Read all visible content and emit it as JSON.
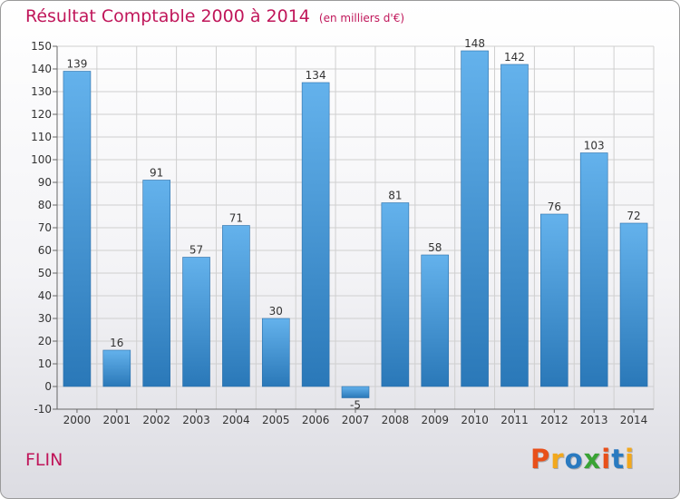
{
  "header": {
    "title": "Résultat Comptable 2000 à 2014",
    "unit": "(en milliers d'€)"
  },
  "footer": {
    "commune": "FLIN",
    "logo_text": "Proxiti",
    "logo_colors": [
      "#e8501a",
      "#f2a81d",
      "#2a7ac0",
      "#3aa335",
      "#e8501a",
      "#2a7ac0",
      "#f2a81d"
    ]
  },
  "colors": {
    "accent": "#c0165a",
    "bar_top": "#64b2ec",
    "bar_bottom": "#2a78b8"
  },
  "chart_data": {
    "type": "bar",
    "categories": [
      "2000",
      "2001",
      "2002",
      "2003",
      "2004",
      "2005",
      "2006",
      "2007",
      "2008",
      "2009",
      "2010",
      "2011",
      "2012",
      "2013",
      "2014"
    ],
    "values": [
      139,
      16,
      91,
      57,
      71,
      30,
      134,
      -5,
      81,
      58,
      148,
      142,
      76,
      103,
      72
    ],
    "title": "Résultat Comptable 2000 à 2014",
    "subtitle": "(en milliers d'€)",
    "ylim": [
      -10,
      150
    ],
    "yticks": [
      -10,
      0,
      10,
      20,
      30,
      40,
      50,
      60,
      70,
      80,
      90,
      100,
      110,
      120,
      130,
      140,
      150
    ],
    "grid": true,
    "data_labels": true
  }
}
